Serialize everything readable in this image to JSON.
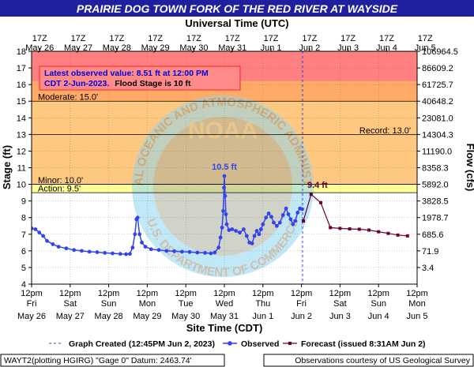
{
  "colors": {
    "title_bar": "#1f1fa0",
    "title_text": "#ffffff",
    "major": "#ff8080",
    "moderate": "#ffaa66",
    "minor": "#ffc880",
    "action": "#ffff99",
    "normal": "#ffffff",
    "observed": "#3344ee",
    "forecast": "#660033",
    "watermark_circle": "#8fd6f2",
    "watermark_band": "#b8a07a",
    "infobox_border": "#ff2222",
    "infobox_text": "#0000dd"
  },
  "header": {
    "title": "PRAIRIE DOG TOWN FORK OF THE RED RIVER AT WAYSIDE",
    "top_axis_title": "Universal Time (UTC)"
  },
  "info_box": {
    "line1": "Latest observed value: 8.51 ft at 12:00 PM",
    "line2a": "CDT 2-Jun-2023.",
    "line2b": "Flood Stage is 10 ft"
  },
  "watermark": {
    "center_text": "NOAA",
    "ring_top": "NATIONAL OCEANIC AND ATMOSPHERIC ADMINISTRATION",
    "ring_bottom": "U.S. DEPARTMENT OF COMMERCE"
  },
  "legend": {
    "graph_created": "Graph Created (12:45PM Jun 2, 2023)",
    "observed": "Observed",
    "forecast": "Forecast (issued 8:31AM Jun 2)"
  },
  "footer": {
    "left": "WAYT2(plotting HGIRG) \"Gage 0\" Datum: 2463.74'",
    "right": "Observations courtesy of US Geological Survey"
  },
  "chart_data": {
    "type": "line",
    "title": "PRAIRIE DOG TOWN FORK OF THE RED RIVER AT WAYSIDE",
    "xlabel": "Site Time (CDT)",
    "ylabel": "Stage (ft)",
    "y2label": "Flow (cfs)",
    "top_axis_label": "Universal Time (UTC)",
    "x_unit": "days since May 26 12pm CDT",
    "xlim": [
      0,
      10
    ],
    "ylim": [
      4,
      18
    ],
    "grid": true,
    "x_ticks_bottom": [
      {
        "time": "12pm",
        "day": "Fri",
        "date": "May 26"
      },
      {
        "time": "12pm",
        "day": "Sat",
        "date": "May 27"
      },
      {
        "time": "12pm",
        "day": "Sun",
        "date": "May 28"
      },
      {
        "time": "12pm",
        "day": "Mon",
        "date": "May 29"
      },
      {
        "time": "12pm",
        "day": "Tue",
        "date": "May 30"
      },
      {
        "time": "12pm",
        "day": "Wed",
        "date": "May 31"
      },
      {
        "time": "12pm",
        "day": "Thu",
        "date": "Jun 1"
      },
      {
        "time": "12pm",
        "day": "Fri",
        "date": "Jun 2"
      },
      {
        "time": "12pm",
        "day": "Sat",
        "date": "Jun 3"
      },
      {
        "time": "12pm",
        "day": "Sun",
        "date": "Jun 4"
      },
      {
        "time": "12pm",
        "day": "Mon",
        "date": "Jun 5"
      }
    ],
    "x_ticks_top": [
      {
        "time": "17Z",
        "date": "May 26"
      },
      {
        "time": "17Z",
        "date": "May 27"
      },
      {
        "time": "17Z",
        "date": "May 28"
      },
      {
        "time": "17Z",
        "date": "May 29"
      },
      {
        "time": "17Z",
        "date": "May 30"
      },
      {
        "time": "17Z",
        "date": "May 31"
      },
      {
        "time": "17Z",
        "date": "Jun 1"
      },
      {
        "time": "17Z",
        "date": "Jun 2"
      },
      {
        "time": "17Z",
        "date": "Jun 3"
      },
      {
        "time": "17Z",
        "date": "Jun 4"
      },
      {
        "time": "17Z",
        "date": "Jun 5"
      }
    ],
    "y_ticks": [
      "4",
      "5",
      "6",
      "7",
      "8",
      "9",
      "10",
      "11",
      "12",
      "13",
      "14",
      "15",
      "16",
      "17",
      "18"
    ],
    "flow_ticks": [
      {
        "stage": 5,
        "label": "3.4"
      },
      {
        "stage": 6,
        "label": "71.9"
      },
      {
        "stage": 7,
        "label": "685.6"
      },
      {
        "stage": 8,
        "label": "1978.7"
      },
      {
        "stage": 9,
        "label": "3828.5"
      },
      {
        "stage": 10,
        "label": "5892.0"
      },
      {
        "stage": 11,
        "label": "8358.3"
      },
      {
        "stage": 12,
        "label": "11190.0"
      },
      {
        "stage": 13,
        "label": "14304.3"
      },
      {
        "stage": 14,
        "label": "23081.0"
      },
      {
        "stage": 15,
        "label": "40648.2"
      },
      {
        "stage": 16,
        "label": "61725.7"
      },
      {
        "stage": 17,
        "label": "86609.2"
      },
      {
        "stage": 18,
        "label": "106964.5"
      }
    ],
    "flood_bands": [
      {
        "name": "normal",
        "from": 4,
        "to": 9.5
      },
      {
        "name": "action",
        "from": 9.5,
        "to": 10
      },
      {
        "name": "minor",
        "from": 10,
        "to": 15
      },
      {
        "name": "moderate",
        "from": 15,
        "to": 16.2
      },
      {
        "name": "major",
        "from": 16.2,
        "to": 18
      }
    ],
    "thresholds": [
      {
        "name": "action",
        "value": 9.5,
        "label": "Action: 9.5'",
        "label_side": "left"
      },
      {
        "name": "minor",
        "value": 10.0,
        "label": "Minor: 10.0'",
        "label_side": "left"
      },
      {
        "name": "record",
        "value": 13.0,
        "label": "Record: 13.0'",
        "label_side": "right"
      },
      {
        "name": "moderate",
        "value": 15.0,
        "label": "Moderate: 15.0'",
        "label_side": "left"
      }
    ],
    "graph_created_x": 7.03,
    "annotations": [
      {
        "text": "10.5 ft",
        "x": 5.0,
        "y": 10.5
      },
      {
        "text": "9.4 ft",
        "x": 7.25,
        "y": 9.4
      }
    ],
    "series": [
      {
        "name": "Observed",
        "values": [
          [
            0.0,
            7.35
          ],
          [
            0.1,
            7.3
          ],
          [
            0.2,
            7.1
          ],
          [
            0.3,
            6.9
          ],
          [
            0.4,
            6.6
          ],
          [
            0.55,
            6.4
          ],
          [
            0.7,
            6.25
          ],
          [
            0.9,
            6.15
          ],
          [
            1.1,
            6.05
          ],
          [
            1.3,
            6.0
          ],
          [
            1.5,
            5.95
          ],
          [
            1.7,
            5.92
          ],
          [
            1.9,
            5.88
          ],
          [
            2.1,
            5.85
          ],
          [
            2.3,
            5.82
          ],
          [
            2.45,
            5.8
          ],
          [
            2.55,
            5.82
          ],
          [
            2.62,
            6.2
          ],
          [
            2.68,
            7.0
          ],
          [
            2.72,
            7.9
          ],
          [
            2.75,
            8.0
          ],
          [
            2.8,
            7.0
          ],
          [
            2.86,
            6.5
          ],
          [
            2.95,
            6.25
          ],
          [
            3.1,
            6.1
          ],
          [
            3.3,
            6.05
          ],
          [
            3.5,
            6.0
          ],
          [
            3.7,
            5.98
          ],
          [
            3.9,
            5.95
          ],
          [
            4.1,
            5.93
          ],
          [
            4.3,
            5.9
          ],
          [
            4.5,
            5.88
          ],
          [
            4.65,
            5.85
          ],
          [
            4.75,
            5.9
          ],
          [
            4.85,
            6.2
          ],
          [
            4.9,
            6.8
          ],
          [
            4.94,
            7.4
          ],
          [
            4.97,
            8.4
          ],
          [
            4.99,
            9.8
          ],
          [
            5.0,
            10.5
          ],
          [
            5.02,
            9.3
          ],
          [
            5.04,
            8.2
          ],
          [
            5.06,
            7.6
          ],
          [
            5.12,
            7.25
          ],
          [
            5.2,
            7.3
          ],
          [
            5.3,
            7.2
          ],
          [
            5.4,
            7.1
          ],
          [
            5.5,
            7.3
          ],
          [
            5.58,
            6.9
          ],
          [
            5.65,
            6.5
          ],
          [
            5.72,
            6.45
          ],
          [
            5.78,
            6.9
          ],
          [
            5.84,
            7.2
          ],
          [
            5.9,
            7.0
          ],
          [
            5.95,
            7.3
          ],
          [
            6.0,
            7.6
          ],
          [
            6.08,
            8.0
          ],
          [
            6.15,
            8.25
          ],
          [
            6.22,
            8.05
          ],
          [
            6.28,
            7.7
          ],
          [
            6.36,
            7.5
          ],
          [
            6.44,
            7.7
          ],
          [
            6.52,
            8.15
          ],
          [
            6.6,
            8.55
          ],
          [
            6.66,
            8.2
          ],
          [
            6.72,
            7.9
          ],
          [
            6.78,
            7.6
          ],
          [
            6.84,
            7.8
          ],
          [
            6.9,
            8.3
          ],
          [
            6.96,
            8.55
          ],
          [
            7.02,
            8.51
          ]
        ]
      },
      {
        "name": "Forecast (issued 8:31AM Jun 2)",
        "values": [
          [
            7.05,
            7.8
          ],
          [
            7.25,
            9.4
          ],
          [
            7.5,
            8.9
          ],
          [
            7.75,
            7.4
          ],
          [
            8.0,
            7.35
          ],
          [
            8.25,
            7.32
          ],
          [
            8.5,
            7.3
          ],
          [
            8.75,
            7.25
          ],
          [
            9.0,
            7.15
          ],
          [
            9.25,
            7.05
          ],
          [
            9.5,
            6.95
          ],
          [
            9.75,
            6.9
          ]
        ]
      }
    ]
  }
}
